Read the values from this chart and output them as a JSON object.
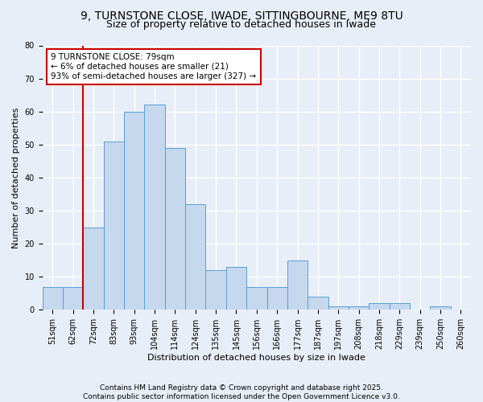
{
  "title": "9, TURNSTONE CLOSE, IWADE, SITTINGBOURNE, ME9 8TU",
  "subtitle": "Size of property relative to detached houses in Iwade",
  "xlabel": "Distribution of detached houses by size in Iwade",
  "ylabel": "Number of detached properties",
  "categories": [
    "51sqm",
    "62sqm",
    "72sqm",
    "83sqm",
    "93sqm",
    "104sqm",
    "114sqm",
    "124sqm",
    "135sqm",
    "145sqm",
    "156sqm",
    "166sqm",
    "177sqm",
    "187sqm",
    "197sqm",
    "208sqm",
    "218sqm",
    "229sqm",
    "239sqm",
    "250sqm",
    "260sqm"
  ],
  "values": [
    7,
    7,
    25,
    51,
    60,
    62,
    49,
    32,
    12,
    13,
    7,
    7,
    15,
    4,
    1,
    1,
    2,
    2,
    0,
    1,
    0
  ],
  "bar_color": "#c5d8ed",
  "bar_edge_color": "#5a9fd4",
  "background_color": "#e8eef7",
  "grid_color": "#ffffff",
  "annotation_line1": "9 TURNSTONE CLOSE: 79sqm",
  "annotation_line2": "← 6% of detached houses are smaller (21)",
  "annotation_line3": "93% of semi-detached houses are larger (327) →",
  "annotation_box_color": "#ffffff",
  "annotation_box_edge_color": "#cc0000",
  "vline_color": "#cc0000",
  "vline_xindex": 2,
  "ylim": [
    0,
    80
  ],
  "yticks": [
    0,
    10,
    20,
    30,
    40,
    50,
    60,
    70,
    80
  ],
  "footer": "Contains HM Land Registry data © Crown copyright and database right 2025.\nContains public sector information licensed under the Open Government Licence v3.0.",
  "title_fontsize": 10,
  "subtitle_fontsize": 9,
  "axis_label_fontsize": 8,
  "tick_fontsize": 7,
  "annotation_fontsize": 7.5,
  "footer_fontsize": 6.5
}
